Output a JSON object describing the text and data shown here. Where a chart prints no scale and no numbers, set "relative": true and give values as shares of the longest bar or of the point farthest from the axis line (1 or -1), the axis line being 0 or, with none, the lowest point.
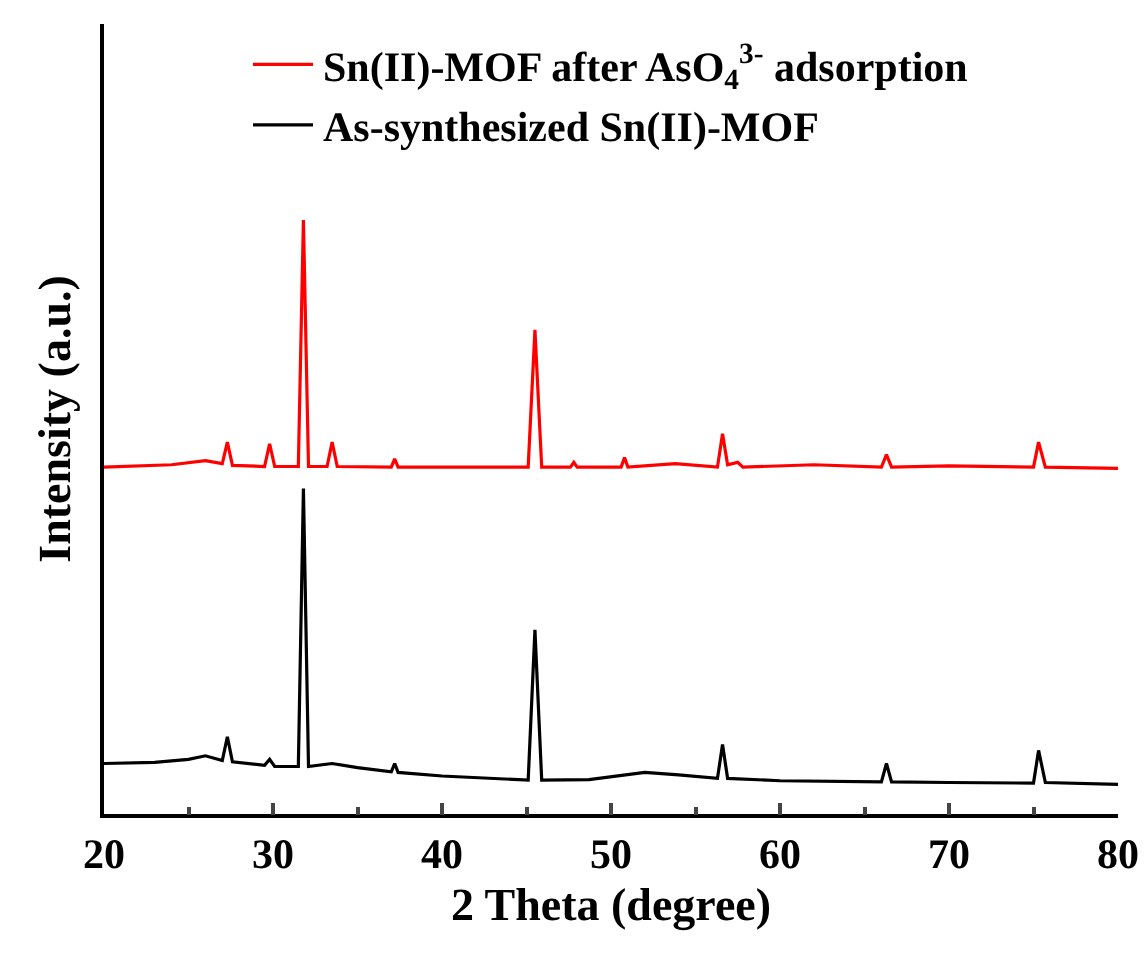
{
  "chart_data": {
    "type": "line",
    "relative": true,
    "xlabel": "2 Theta (degree)",
    "ylabel": "Intensity (a.u.)",
    "xlim": [
      20,
      80
    ],
    "xticks": [
      20,
      30,
      40,
      50,
      60,
      70,
      80
    ],
    "tick_labels": "x",
    "legend": "top",
    "grid": false,
    "marker": "none",
    "line_style": "solid",
    "series": [
      {
        "name": "Sn(II)-MOF after AsO$_{4}$$^{3-}$ adsorption",
        "color": "#ff0000",
        "x": [
          20,
          24,
          26,
          27.0,
          27.3,
          27.6,
          29.5,
          29.8,
          30.1,
          31.5,
          31.8,
          32.1,
          33.2,
          33.5,
          33.8,
          37.0,
          37.2,
          37.4,
          45.1,
          45.5,
          45.9,
          47.6,
          47.8,
          48.0,
          50.6,
          50.8,
          51.0,
          53.8,
          56.3,
          56.6,
          56.9,
          57.5,
          57.8,
          62,
          66.0,
          66.3,
          66.6,
          70,
          75.0,
          75.3,
          75.7,
          80
        ],
        "values": [
          0.584,
          0.588,
          0.595,
          0.59,
          0.626,
          0.587,
          0.585,
          0.623,
          0.585,
          0.585,
          1.0,
          0.585,
          0.585,
          0.626,
          0.585,
          0.584,
          0.598,
          0.584,
          0.584,
          0.815,
          0.584,
          0.584,
          0.592,
          0.584,
          0.584,
          0.6,
          0.584,
          0.59,
          0.584,
          0.64,
          0.588,
          0.592,
          0.584,
          0.588,
          0.584,
          0.605,
          0.584,
          0.586,
          0.584,
          0.626,
          0.584,
          0.582
        ]
      },
      {
        "name": "As-synthesized Sn(II)-MOF",
        "color": "#000000",
        "x": [
          20,
          23,
          25,
          26,
          27.0,
          27.3,
          27.6,
          29.5,
          29.8,
          30.1,
          31.5,
          31.8,
          32.1,
          33.5,
          35,
          37.0,
          37.2,
          37.4,
          40,
          45.1,
          45.5,
          45.9,
          48.7,
          52,
          54,
          56.3,
          56.6,
          56.9,
          60,
          66.0,
          66.3,
          66.6,
          70,
          75.0,
          75.3,
          75.7,
          80
        ],
        "values": [
          0.085,
          0.087,
          0.092,
          0.098,
          0.09,
          0.13,
          0.088,
          0.082,
          0.092,
          0.08,
          0.08,
          0.548,
          0.08,
          0.085,
          0.078,
          0.071,
          0.085,
          0.07,
          0.064,
          0.057,
          0.31,
          0.057,
          0.058,
          0.07,
          0.066,
          0.06,
          0.117,
          0.06,
          0.056,
          0.054,
          0.085,
          0.054,
          0.053,
          0.052,
          0.107,
          0.053,
          0.05
        ]
      }
    ]
  }
}
